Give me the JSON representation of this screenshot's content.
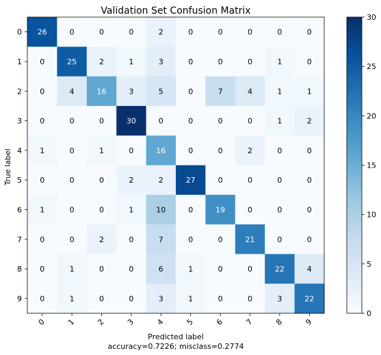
{
  "chart_data": {
    "type": "heatmap",
    "title": "Validation Set Confusion Matrix",
    "xlabel": "Predicted label",
    "ylabel": "True label",
    "footer": "accuracy=0.7226; misclass=0.2774",
    "x_tick_labels": [
      "0",
      "1",
      "2",
      "3",
      "4",
      "5",
      "6",
      "7",
      "8",
      "9"
    ],
    "y_tick_labels": [
      "0",
      "1",
      "2",
      "3",
      "4",
      "5",
      "6",
      "7",
      "8",
      "9"
    ],
    "matrix": [
      [
        26,
        0,
        0,
        0,
        2,
        0,
        0,
        0,
        0,
        0
      ],
      [
        0,
        25,
        2,
        1,
        3,
        0,
        0,
        0,
        1,
        0
      ],
      [
        0,
        4,
        16,
        3,
        5,
        0,
        7,
        4,
        1,
        1
      ],
      [
        0,
        0,
        0,
        30,
        0,
        0,
        0,
        0,
        1,
        2
      ],
      [
        1,
        0,
        1,
        0,
        16,
        0,
        0,
        2,
        0,
        0
      ],
      [
        0,
        0,
        0,
        2,
        2,
        27,
        0,
        0,
        0,
        0
      ],
      [
        1,
        0,
        0,
        1,
        10,
        0,
        19,
        0,
        0,
        0
      ],
      [
        0,
        0,
        2,
        0,
        7,
        0,
        0,
        21,
        0,
        0
      ],
      [
        0,
        1,
        0,
        0,
        6,
        1,
        0,
        0,
        22,
        4
      ],
      [
        0,
        1,
        0,
        0,
        3,
        1,
        0,
        0,
        3,
        22
      ]
    ],
    "colorbar": {
      "min": 0,
      "max": 30,
      "ticks": [
        "0",
        "5",
        "10",
        "15",
        "20",
        "25",
        "30"
      ]
    },
    "colormap": "Blues",
    "colors": {
      "low": "#f7fbff",
      "high": "#08306b"
    }
  }
}
